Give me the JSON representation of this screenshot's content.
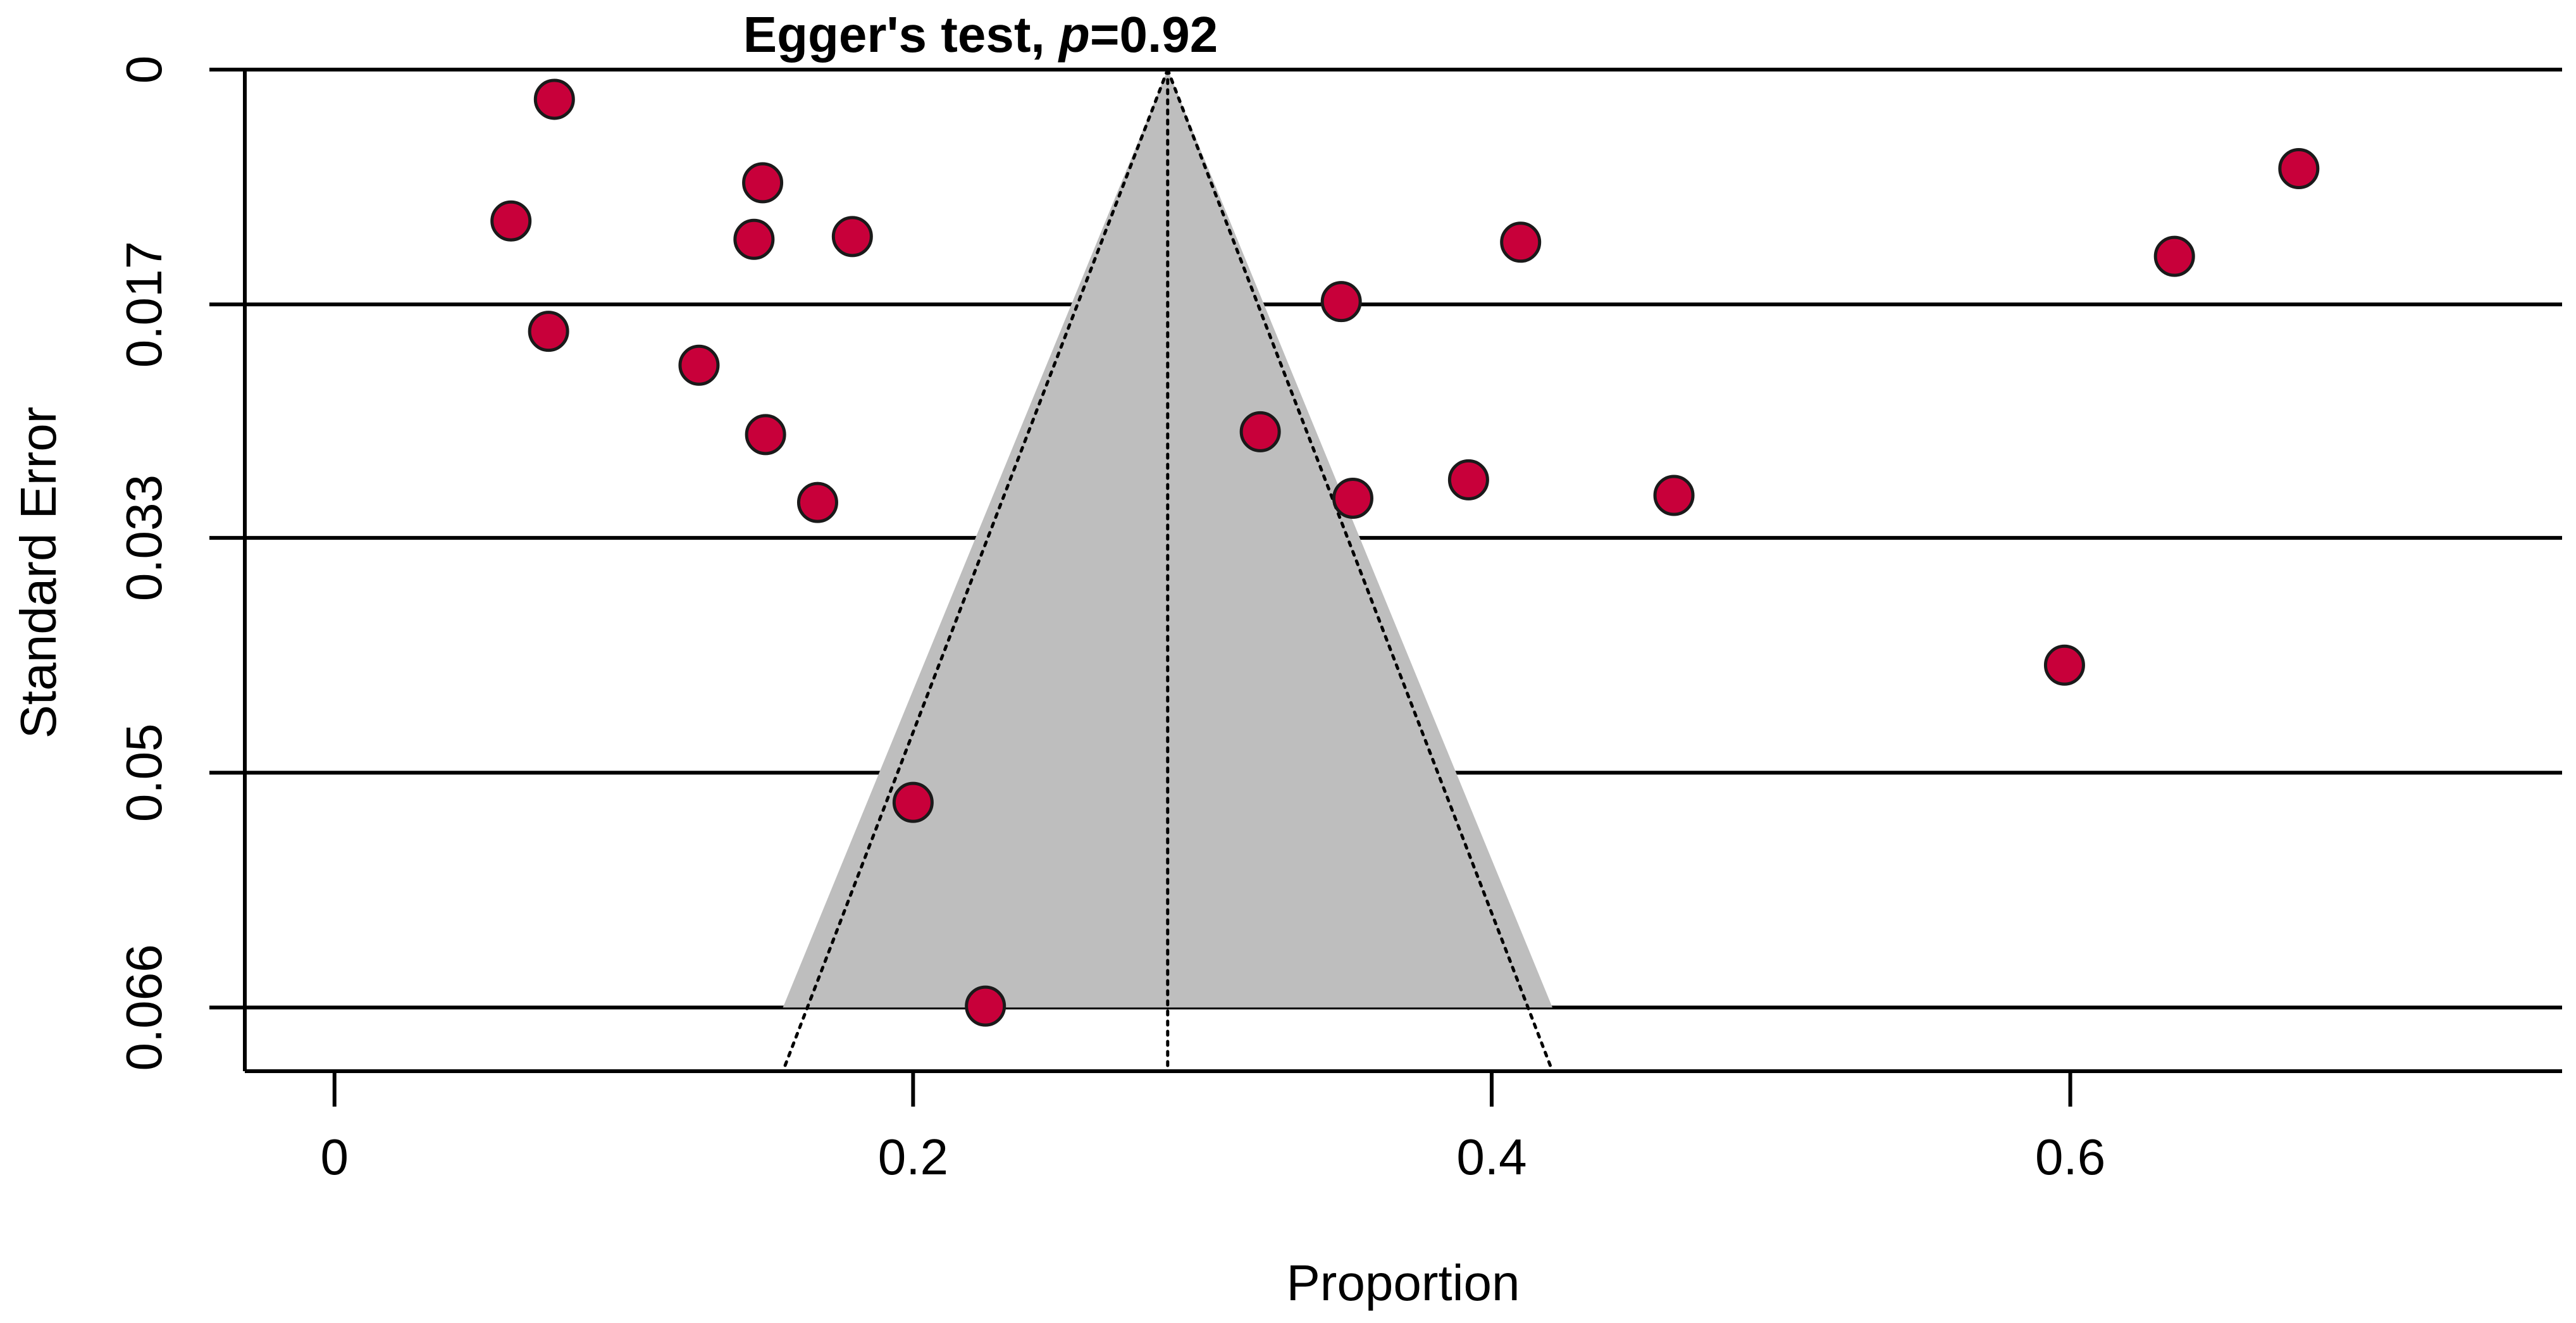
{
  "chart_data": {
    "type": "scatter",
    "title_prefix": "Egger's test, ",
    "title_p": "p",
    "title_suffix": "=0.92",
    "xlabel": "Proportion",
    "ylabel": "Standard Error",
    "xlim": [
      -0.031,
      0.77
    ],
    "ylim": [
      0.0708,
      0
    ],
    "x_ticks": [
      0,
      0.2,
      0.4,
      0.6
    ],
    "x_tick_labels": [
      "0",
      "0.2",
      "0.4",
      "0.6"
    ],
    "y_ticks": [
      0,
      0.0166,
      0.0331,
      0.0497,
      0.0663
    ],
    "y_tick_labels": [
      "0",
      "0.017",
      "0.033",
      "0.05",
      "0.066"
    ],
    "y_gridlines": true,
    "pooled_estimate": 0.288,
    "funnel": {
      "center": 0.288,
      "bottom_se": 0.0663,
      "left_at_bottom": 0.155,
      "right_at_bottom": 0.421
    },
    "colors": {
      "point_fill": "#C8003A",
      "point_stroke": "#1a1a1a",
      "funnel_fill": "#BEBEBE",
      "line": "#000000"
    },
    "points": [
      {
        "x": 0.076,
        "y": 0.0021
      },
      {
        "x": 0.148,
        "y": 0.008
      },
      {
        "x": 0.061,
        "y": 0.0107
      },
      {
        "x": 0.145,
        "y": 0.012
      },
      {
        "x": 0.179,
        "y": 0.0118
      },
      {
        "x": 0.41,
        "y": 0.0122
      },
      {
        "x": 0.348,
        "y": 0.0164
      },
      {
        "x": 0.074,
        "y": 0.0185
      },
      {
        "x": 0.126,
        "y": 0.0209
      },
      {
        "x": 0.149,
        "y": 0.0258
      },
      {
        "x": 0.32,
        "y": 0.0256
      },
      {
        "x": 0.167,
        "y": 0.0306
      },
      {
        "x": 0.352,
        "y": 0.0303
      },
      {
        "x": 0.392,
        "y": 0.029
      },
      {
        "x": 0.463,
        "y": 0.0301
      },
      {
        "x": 0.598,
        "y": 0.0421
      },
      {
        "x": 0.2,
        "y": 0.0518
      },
      {
        "x": 0.225,
        "y": 0.0662
      },
      {
        "x": 0.636,
        "y": 0.0132
      },
      {
        "x": 0.679,
        "y": 0.007
      }
    ]
  }
}
